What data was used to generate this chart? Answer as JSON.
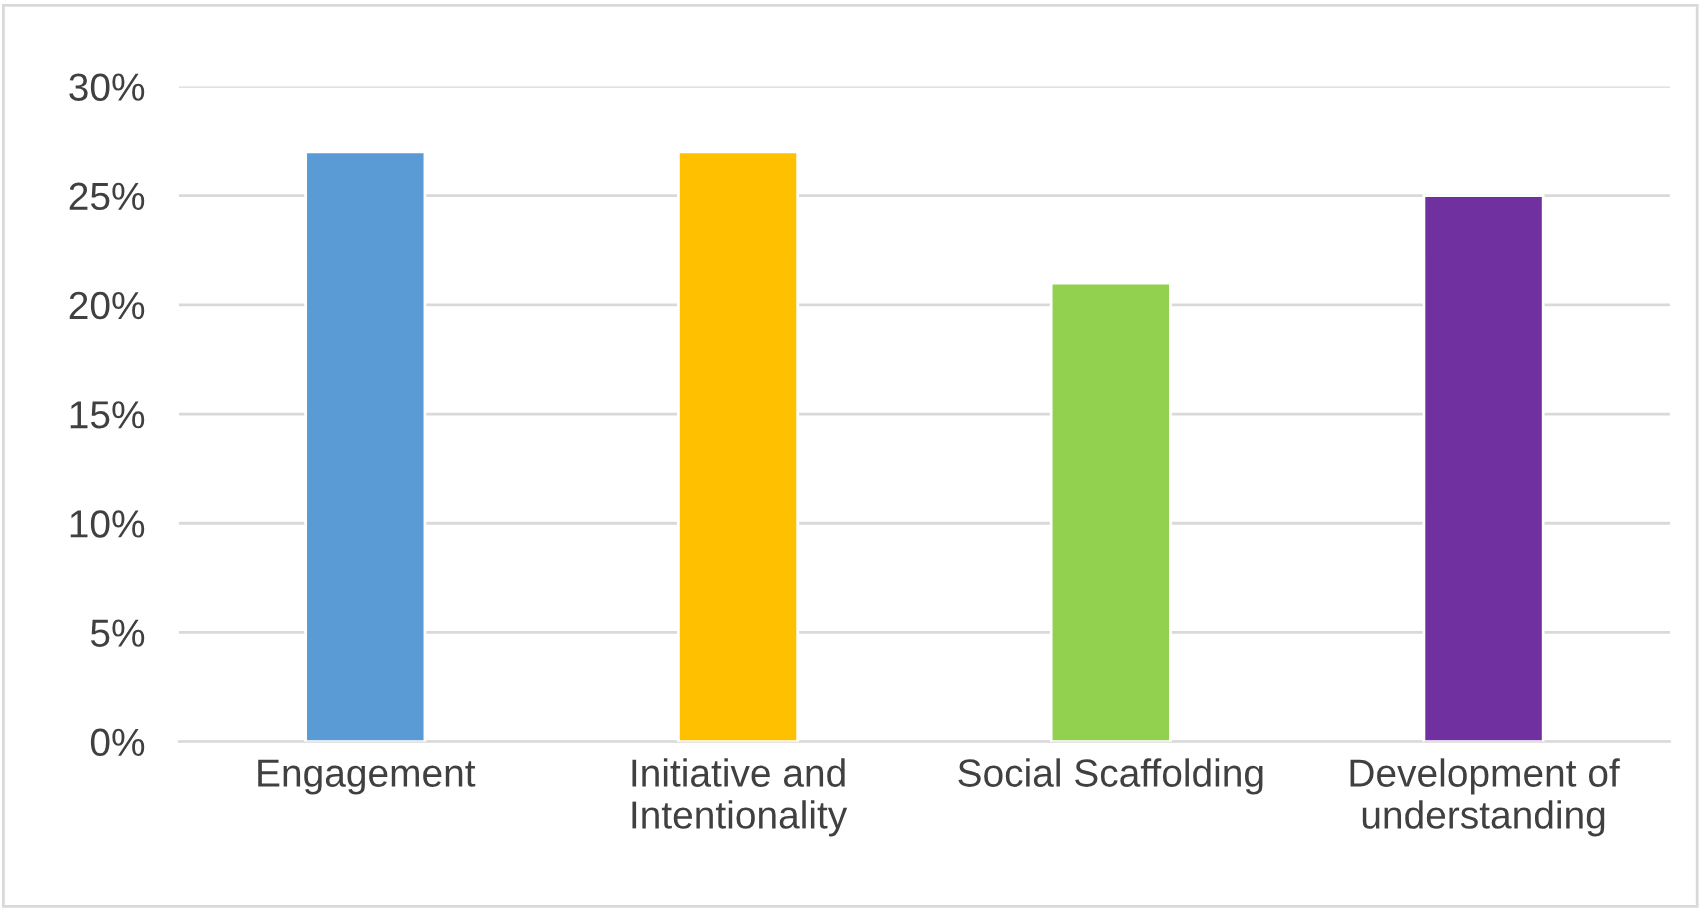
{
  "chart_data": {
    "type": "bar",
    "categories": [
      "Engagement",
      "Initiative and\nIntentionality",
      "Social Scaffolding",
      "Development of\nunderstanding"
    ],
    "values": [
      27,
      27,
      21,
      25
    ],
    "colors": [
      "#5b9bd5",
      "#ffc000",
      "#92d050",
      "#7030a0"
    ],
    "ylim": [
      0,
      30
    ],
    "yticks": [
      {
        "value": 0,
        "label": "0%"
      },
      {
        "value": 5,
        "label": "5%"
      },
      {
        "value": 10,
        "label": "10%"
      },
      {
        "value": 15,
        "label": "15%"
      },
      {
        "value": 20,
        "label": "20%"
      },
      {
        "value": 25,
        "label": "25%"
      },
      {
        "value": 30,
        "label": "30%"
      }
    ],
    "grid": "y",
    "legend": false
  }
}
